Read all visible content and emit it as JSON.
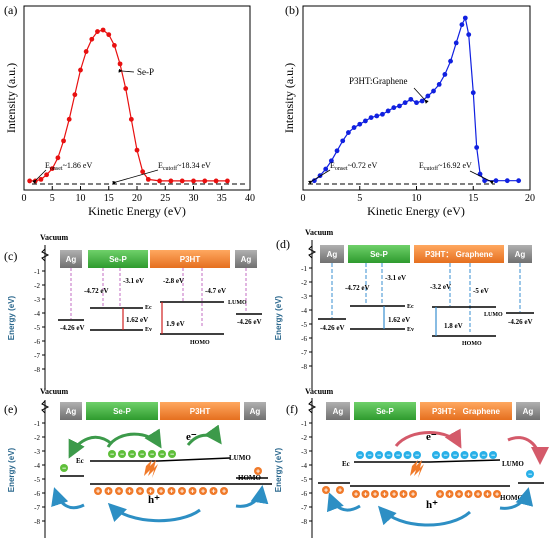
{
  "chart_data": [
    {
      "type": "scatter",
      "panel": "(a)",
      "xlabel": "Kinetic Energy (eV)",
      "ylabel": "Intensity (a.u.)",
      "xlim": [
        0,
        40
      ],
      "xticks": [
        "0",
        "5",
        "10",
        "15",
        "20",
        "25",
        "30",
        "35",
        "40"
      ],
      "color": "#e81010",
      "series": [
        {
          "name": "Se-P",
          "x": [
            1,
            2,
            3,
            4,
            5,
            6,
            7,
            8,
            9,
            10,
            11,
            12,
            13,
            14,
            15,
            16,
            17,
            18,
            19,
            20,
            21,
            22,
            24,
            26,
            28,
            30,
            32,
            34,
            36
          ],
          "y": [
            0.02,
            0.02,
            0.03,
            0.06,
            0.1,
            0.17,
            0.28,
            0.42,
            0.58,
            0.74,
            0.86,
            0.94,
            0.99,
            1.0,
            0.97,
            0.9,
            0.78,
            0.62,
            0.42,
            0.22,
            0.08,
            0.03,
            0.02,
            0.02,
            0.02,
            0.02,
            0.02,
            0.02,
            0.02
          ]
        }
      ],
      "annotations": [
        {
          "text": "Se-P"
        },
        {
          "text": "E",
          "sub": "onset",
          "suffix": "~1.86 eV"
        },
        {
          "text": "E",
          "sub": "cutoff",
          "suffix": "~18.34 eV"
        }
      ]
    },
    {
      "type": "scatter",
      "panel": "(b)",
      "xlabel": "Kinetic Energy (eV)",
      "ylabel": "Intensity (a.u.)",
      "xlim": [
        0,
        20
      ],
      "xticks": [
        "0",
        "5",
        "10",
        "15",
        "20"
      ],
      "color": "#1020e0",
      "series": [
        {
          "name": "P3HT:Graphene",
          "x": [
            1,
            1.5,
            2,
            2.5,
            3,
            3.5,
            4,
            4.5,
            5,
            5.5,
            6,
            6.5,
            7,
            7.5,
            8,
            8.5,
            9,
            9.5,
            10,
            10.5,
            11,
            11.5,
            12,
            12.5,
            13,
            13.5,
            14,
            14.3,
            14.6,
            15,
            15.3,
            15.6,
            16,
            17,
            18,
            19
          ],
          "y": [
            0.02,
            0.05,
            0.09,
            0.14,
            0.2,
            0.26,
            0.31,
            0.34,
            0.36,
            0.38,
            0.4,
            0.41,
            0.42,
            0.44,
            0.46,
            0.47,
            0.49,
            0.51,
            0.49,
            0.5,
            0.53,
            0.56,
            0.6,
            0.66,
            0.74,
            0.85,
            0.96,
            1.0,
            0.9,
            0.55,
            0.22,
            0.06,
            0.02,
            0.02,
            0.02,
            0.02
          ]
        }
      ],
      "annotations": [
        {
          "text": "P3HT:Graphene"
        },
        {
          "text": "E",
          "sub": "onset",
          "suffix": "~0.72 eV"
        },
        {
          "text": "E",
          "sub": "cutoff",
          "suffix": "~16.92 eV"
        }
      ]
    }
  ],
  "energy_axis": {
    "label": "Energy (eV)",
    "ticks": [
      "-1",
      "-2",
      "-3",
      "-4",
      "-5",
      "-6",
      "-7",
      "-8"
    ]
  },
  "panels_cd": [
    {
      "panel": "(c)",
      "vacuum": "Vacuum",
      "boxes": [
        "Ag",
        "Se-P",
        "P3HT",
        "Ag"
      ],
      "values": {
        "ag_left": "-4.26 eV",
        "sep_ec": "-4.72 eV",
        "sep_vac": "-3.1 eV",
        "sep_gap": "1.62 eV",
        "p3_lumo": "-2.8 eV",
        "p3_vac": "-4.7 eV",
        "p3_gap": "1.9 eV",
        "ag_right": "-4.26 eV"
      },
      "levels": {
        "ec": "Ec",
        "ev": "Ev",
        "lumo": "LUMO",
        "homo": "HOMO"
      }
    },
    {
      "panel": "(d)",
      "vacuum": "Vacuum",
      "boxes": [
        "Ag",
        "Se-P",
        "P3HT： Graphene",
        "Ag"
      ],
      "values": {
        "ag_left": "-4.26 eV",
        "sep_ec": "-4.72 eV",
        "sep_vac": "-3.1 eV",
        "sep_gap": "1.62 eV",
        "p3_lumo": "-3.2 eV",
        "p3_vac": "-5 eV",
        "p3_gap": "1.8 eV",
        "ag_right": "-4.26 eV"
      },
      "levels": {
        "ec": "Ec",
        "ev": "Ev",
        "lumo": "LUMO",
        "homo": "HOMO"
      }
    }
  ],
  "panels_ef": [
    {
      "panel": "(e)",
      "vacuum": "Vacuum",
      "boxes": [
        "Ag",
        "Se-P",
        "P3HT",
        "Ag"
      ],
      "levels": {
        "ec": "Ec",
        "lumo": "LUMO",
        "homo": "HOMO"
      },
      "carriers": {
        "electron": "e⁻",
        "hole": "h⁺",
        "minus": "−",
        "plus": "+"
      }
    },
    {
      "panel": "(f)",
      "vacuum": "Vacuum",
      "boxes": [
        "Ag",
        "Se-P",
        "P3HT： Graphene",
        "Ag"
      ],
      "levels": {
        "ec": "Ec",
        "lumo": "LUMO",
        "homo": "HOMO"
      },
      "carriers": {
        "electron": "e⁻",
        "hole": "h⁺",
        "minus": "−",
        "plus": "+"
      }
    }
  ],
  "colors": {
    "red": "#e81010",
    "blue": "#1020e0",
    "ag_box": "#8b8b8b",
    "sep_box": "#3fae3f",
    "p3ht_box": "#f08030",
    "electron": "#5fbf3a",
    "electron_f": "#29b0e8",
    "hole": "#f07a2a",
    "axis_text": "#2e6a8f"
  }
}
